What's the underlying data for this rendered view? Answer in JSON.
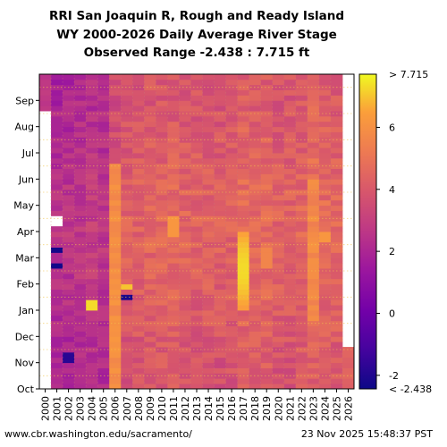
{
  "chart_data": {
    "type": "heatmap",
    "title_lines": [
      "RRI San Joaquin R, Rough and Ready Island",
      "WY 2000-2026 Daily Average River Stage",
      "Observed Range -2.438 : 7.715 ft"
    ],
    "x_categories": [
      "2000",
      "2001",
      "2002",
      "2003",
      "2004",
      "2005",
      "2006",
      "2007",
      "2008",
      "2009",
      "2010",
      "2011",
      "2012",
      "2013",
      "2014",
      "2015",
      "2016",
      "2017",
      "2018",
      "2019",
      "2020",
      "2021",
      "2022",
      "2023",
      "2024",
      "2025",
      "2026"
    ],
    "y_categories": [
      "Oct",
      "Nov",
      "Dec",
      "Jan",
      "Feb",
      "Mar",
      "Apr",
      "May",
      "Jun",
      "Jul",
      "Aug",
      "Sep"
    ],
    "xlabel": "",
    "ylabel": "",
    "units": "ft",
    "value_range": [
      -2.438,
      7.715
    ],
    "colorbar": {
      "ticks": [
        -2,
        0,
        2,
        4,
        6
      ],
      "min_label": "< -2.438",
      "max_label": "> 7.715",
      "colormap": "plasma"
    },
    "approx_water_year_median_stage_ft": [
      null,
      2.2,
      2.3,
      2.4,
      2.6,
      2.4,
      3.7,
      4.0,
      4.1,
      4.2,
      4.2,
      4.3,
      4.2,
      4.1,
      4.1,
      4.0,
      4.1,
      4.5,
      4.3,
      4.4,
      4.1,
      4.1,
      4.2,
      4.6,
      4.4,
      4.3,
      3.8
    ],
    "notable_events": [
      {
        "water_year": "2006",
        "period": "Oct-Jun",
        "description": "high stage ~6 ft"
      },
      {
        "water_year": "2017",
        "period": "Jan-Mar",
        "description": "peak stage ~7 ft"
      },
      {
        "water_year": "2004",
        "period": "Jan",
        "description": "high stage ~7 ft"
      },
      {
        "water_year": "2007",
        "period": "Jan",
        "description": "low stage ~ -2 ft"
      },
      {
        "water_year": "2001",
        "period": "Mar",
        "description": "low stage ~ -2 ft"
      },
      {
        "water_year": "2002",
        "period": "Nov",
        "description": "low stage ~ -2 ft"
      }
    ]
  },
  "footer": {
    "left": "www.cbr.washington.edu/sacramento/",
    "right": "23 Nov 2025 15:48:37 PST"
  }
}
